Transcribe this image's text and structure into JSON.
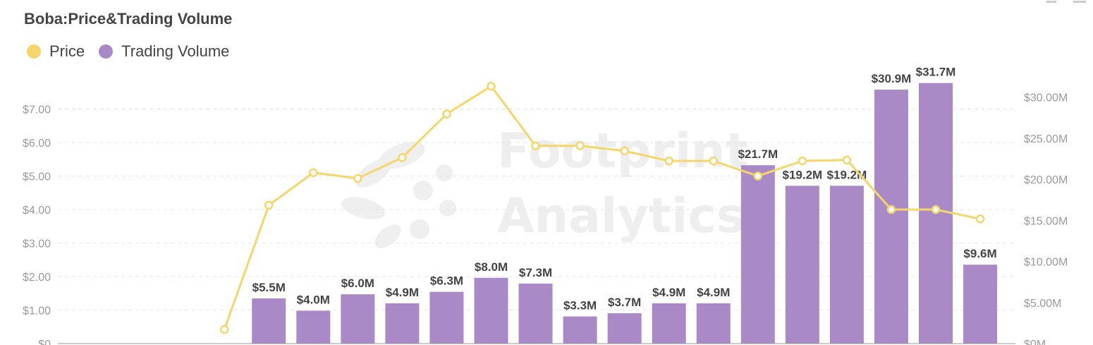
{
  "page": {
    "title": "Boba:Price&Trading Volume",
    "watermark": [
      "Footprint",
      "Analytics"
    ]
  },
  "colors": {
    "price": "#F4D66A",
    "volume": "#A98AC6",
    "grid": "#E6E6E6",
    "axis": "#999999"
  },
  "chart_data": {
    "type": "bar",
    "title": "Boba:Price&Trading Volume",
    "legend": {
      "position": "top-left",
      "entries": [
        {
          "name": "Price",
          "color": "#F4D66A"
        },
        {
          "name": "Trading Volume",
          "color": "#A98AC6"
        }
      ]
    },
    "grid": true,
    "x_count": 18,
    "series": [
      {
        "name": "Price",
        "type": "line",
        "axis": "left",
        "values": [
          null,
          null,
          null,
          null,
          0.42,
          4.13,
          5.1,
          4.93,
          5.55,
          6.85,
          7.68,
          5.9,
          5.9,
          5.75,
          5.45,
          5.45,
          5.0,
          5.45,
          5.48,
          4.0,
          4.0,
          3.72
        ]
      },
      {
        "name": "Trading Volume",
        "type": "bar",
        "axis": "right",
        "values": [
          null,
          null,
          null,
          null,
          null,
          5.5,
          4.0,
          6.0,
          4.9,
          6.3,
          8.0,
          7.3,
          3.3,
          3.7,
          4.9,
          4.9,
          21.7,
          19.2,
          19.2,
          30.9,
          31.7,
          9.6
        ],
        "labels": [
          "",
          "",
          "",
          "",
          "",
          "$5.5M",
          "$4.0M",
          "$6.0M",
          "$4.9M",
          "$6.3M",
          "$8.0M",
          "$7.3M",
          "$3.3M",
          "$3.7M",
          "$4.9M",
          "$4.9M",
          "$21.7M",
          "$19.2M",
          "$19.2M",
          "$30.9M",
          "$31.7M",
          "$9.6M"
        ]
      }
    ],
    "y_left": {
      "range": [
        0,
        8.5
      ],
      "ticks": [
        0,
        1,
        2,
        3,
        4,
        5,
        6,
        7
      ],
      "tick_labels": [
        "$0",
        "$1.00",
        "$2.00",
        "$3.00",
        "$4.00",
        "$5.00",
        "$6.00",
        "$7.00"
      ]
    },
    "y_right": {
      "range": [
        0,
        35
      ],
      "ticks": [
        0,
        5,
        10,
        15,
        20,
        25,
        30
      ],
      "tick_labels": [
        "$0M",
        "$5.00M",
        "$10.00M",
        "$15.00M",
        "$20.00M",
        "$25.00M",
        "$30.00M"
      ]
    }
  }
}
